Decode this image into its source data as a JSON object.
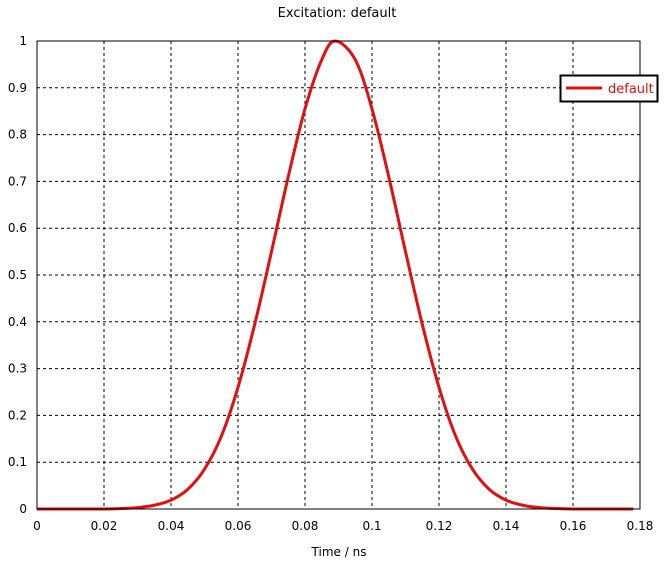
{
  "colors": {
    "series": "#e01010",
    "grid": "#000000",
    "axis": "#000000",
    "background": "#ffffff"
  },
  "chart_data": {
    "type": "line",
    "title": "Excitation: default",
    "xlabel": "Time / ns",
    "ylabel": "",
    "xlim": [
      0,
      0.18
    ],
    "ylim": [
      0,
      1
    ],
    "x_ticks": [
      "0",
      "0.02",
      "0.04",
      "0.06",
      "0.08",
      "0.1",
      "0.12",
      "0.14",
      "0.16",
      "0.18"
    ],
    "y_ticks": [
      "0",
      "0.1",
      "0.2",
      "0.3",
      "0.4",
      "0.5",
      "0.6",
      "0.7",
      "0.8",
      "0.9",
      "1"
    ],
    "grid": true,
    "legend_position": "top-right",
    "series": [
      {
        "name": "default",
        "x": [
          0,
          0.01,
          0.02,
          0.025,
          0.03,
          0.035,
          0.04,
          0.045,
          0.05,
          0.055,
          0.06,
          0.065,
          0.07,
          0.075,
          0.08,
          0.085,
          0.089,
          0.095,
          0.1,
          0.105,
          0.11,
          0.115,
          0.12,
          0.125,
          0.13,
          0.135,
          0.14,
          0.145,
          0.15,
          0.16,
          0.17,
          0.178
        ],
        "y": [
          0,
          0,
          0,
          0.001,
          0.003,
          0.008,
          0.019,
          0.042,
          0.085,
          0.155,
          0.26,
          0.395,
          0.55,
          0.71,
          0.855,
          0.96,
          1.0,
          0.96,
          0.855,
          0.71,
          0.55,
          0.395,
          0.26,
          0.155,
          0.085,
          0.042,
          0.019,
          0.008,
          0.003,
          0,
          0,
          0
        ]
      }
    ]
  }
}
